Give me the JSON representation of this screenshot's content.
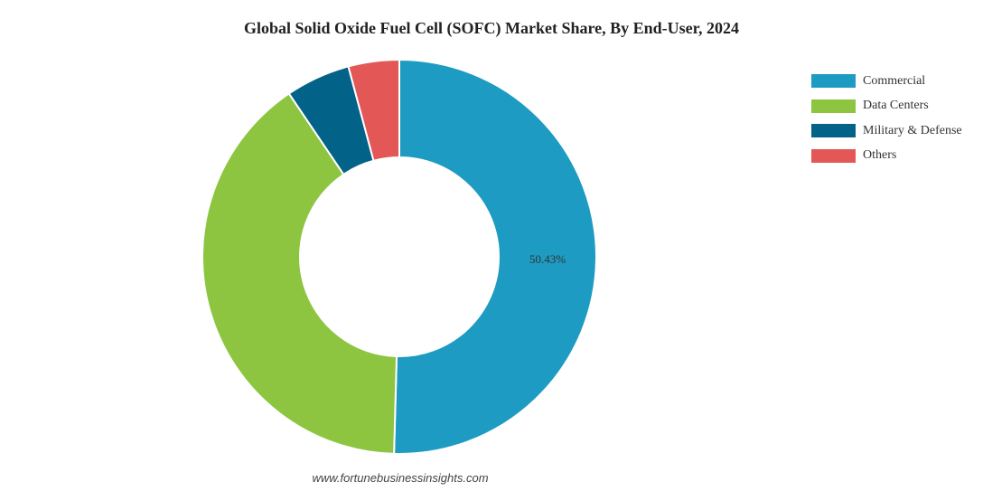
{
  "chart_data": {
    "type": "pie",
    "variant": "donut",
    "title": "Global Solid Oxide Fuel Cell (SOFC) Market Share, By End-User, 2024",
    "categories": [
      "Commercial",
      "Data Centers",
      "Military & Defense",
      "Others"
    ],
    "values": [
      50.43,
      40.1,
      5.3,
      4.17
    ],
    "colors": [
      "#1e9bc2",
      "#8dc540",
      "#036288",
      "#e45757"
    ],
    "data_labels": [
      "50.43%",
      "",
      "",
      ""
    ],
    "legend_position": "top-right"
  },
  "source": "www.fortunebusinessinsights.com"
}
